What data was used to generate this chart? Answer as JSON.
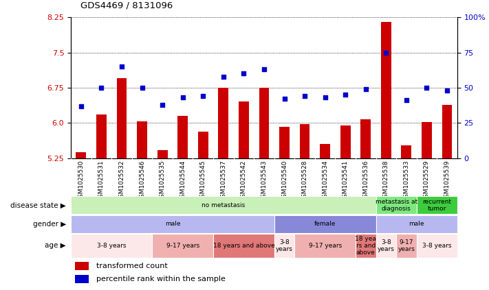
{
  "title": "GDS4469 / 8131096",
  "samples": [
    "GSM1025530",
    "GSM1025531",
    "GSM1025532",
    "GSM1025546",
    "GSM1025535",
    "GSM1025544",
    "GSM1025545",
    "GSM1025537",
    "GSM1025542",
    "GSM1025543",
    "GSM1025540",
    "GSM1025528",
    "GSM1025534",
    "GSM1025541",
    "GSM1025536",
    "GSM1025538",
    "GSM1025533",
    "GSM1025529",
    "GSM1025539"
  ],
  "bar_values": [
    5.38,
    6.18,
    6.95,
    6.03,
    5.42,
    6.15,
    5.82,
    6.75,
    6.45,
    6.75,
    5.92,
    5.98,
    5.55,
    5.95,
    6.08,
    8.15,
    5.52,
    6.02,
    6.38
  ],
  "dot_values": [
    37,
    50,
    65,
    50,
    38,
    43,
    44,
    58,
    60,
    63,
    42,
    44,
    43,
    45,
    49,
    75,
    41,
    50,
    48
  ],
  "ylim_left": [
    5.25,
    8.25
  ],
  "ylim_right": [
    0,
    100
  ],
  "yticks_left": [
    5.25,
    6.0,
    6.75,
    7.5,
    8.25
  ],
  "yticks_right": [
    0,
    25,
    50,
    75,
    100
  ],
  "disease_state_groups": [
    {
      "label": "no metastasis",
      "start": 0,
      "end": 15,
      "color": "#c8f0b8"
    },
    {
      "label": "metastasis at\ndiagnosis",
      "start": 15,
      "end": 17,
      "color": "#7de87d"
    },
    {
      "label": "recurrent\ntumor",
      "start": 17,
      "end": 19,
      "color": "#3dcc3d"
    }
  ],
  "gender_groups": [
    {
      "label": "male",
      "start": 0,
      "end": 10,
      "color": "#b8b8f0"
    },
    {
      "label": "female",
      "start": 10,
      "end": 15,
      "color": "#8888d8"
    },
    {
      "label": "male",
      "start": 15,
      "end": 19,
      "color": "#b8b8f0"
    }
  ],
  "age_groups": [
    {
      "label": "3-8 years",
      "start": 0,
      "end": 4,
      "color": "#fce8e8"
    },
    {
      "label": "9-17 years",
      "start": 4,
      "end": 7,
      "color": "#f0b0b0"
    },
    {
      "label": "18 years and above",
      "start": 7,
      "end": 10,
      "color": "#e07878"
    },
    {
      "label": "3-8\nyears",
      "start": 10,
      "end": 11,
      "color": "#fce8e8"
    },
    {
      "label": "9-17 years",
      "start": 11,
      "end": 14,
      "color": "#f0b0b0"
    },
    {
      "label": "18 yea\nrs and\nabove",
      "start": 14,
      "end": 15,
      "color": "#e07878"
    },
    {
      "label": "3-8\nyears",
      "start": 15,
      "end": 16,
      "color": "#fce8e8"
    },
    {
      "label": "9-17\nyears",
      "start": 16,
      "end": 17,
      "color": "#f0b0b0"
    },
    {
      "label": "3-8 years",
      "start": 17,
      "end": 19,
      "color": "#fce8e8"
    }
  ],
  "bar_color": "#cc0000",
  "dot_color": "#0000cc",
  "row_labels": [
    "disease state",
    "gender",
    "age"
  ],
  "xlabel_bg_color": "#d8d8d8"
}
